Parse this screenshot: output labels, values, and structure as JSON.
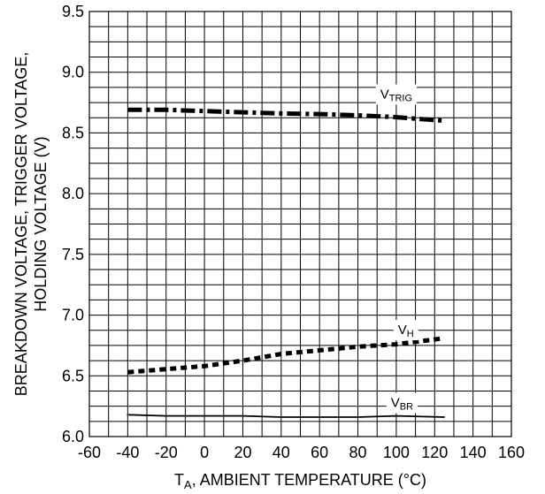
{
  "chart_data": {
    "type": "line",
    "title": "",
    "xlabel": {
      "pre": "T",
      "sub": "A",
      "post": ", AMBIENT TEMPERATURE (°C)"
    },
    "ylabel_lines": [
      "BREAKDOWN VOLTAGE, TRIGGER VOLTAGE,",
      "HOLDING VOLTAGE (V)"
    ],
    "xlim": [
      -60,
      160
    ],
    "ylim": [
      6.0,
      9.5
    ],
    "x_ticks": [
      "-60",
      "-40",
      "-20",
      "0",
      "20",
      "40",
      "60",
      "80",
      "100",
      "120",
      "140",
      "160"
    ],
    "y_ticks": [
      "6.0",
      "6.5",
      "7.0",
      "7.5",
      "8.0",
      "8.5",
      "9.0",
      "9.5"
    ],
    "grid": true,
    "x_minor_step": 10,
    "y_minor_step": 0.125,
    "series": [
      {
        "name_main": "V",
        "name_sub": "TRIG",
        "label_at": [
          100,
          8.82
        ],
        "style": "dashdot",
        "x": [
          -40,
          -20,
          0,
          20,
          40,
          60,
          80,
          100,
          125
        ],
        "y": [
          8.69,
          8.69,
          8.68,
          8.67,
          8.66,
          8.655,
          8.645,
          8.63,
          8.6
        ]
      },
      {
        "name_main": "V",
        "name_sub": "H",
        "label_at": [
          105,
          6.88
        ],
        "style": "dotted",
        "x": [
          -40,
          -20,
          0,
          20,
          40,
          60,
          80,
          100,
          125
        ],
        "y": [
          6.53,
          6.555,
          6.58,
          6.625,
          6.68,
          6.71,
          6.74,
          6.76,
          6.81
        ]
      },
      {
        "name_main": "V",
        "name_sub": "BR",
        "label_at": [
          103,
          6.28
        ],
        "style": "solid",
        "x": [
          -40,
          -20,
          0,
          20,
          40,
          60,
          80,
          100,
          125
        ],
        "y": [
          6.18,
          6.17,
          6.17,
          6.17,
          6.16,
          6.16,
          6.16,
          6.17,
          6.16
        ]
      }
    ]
  }
}
